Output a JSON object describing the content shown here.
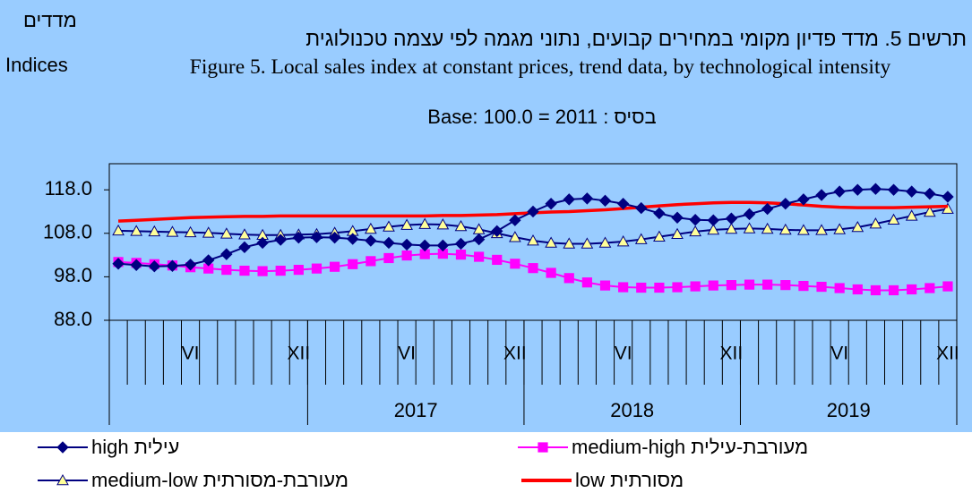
{
  "chart_data": {
    "type": "line",
    "y_label_he": "מדדים",
    "y_label_en": "Indices",
    "title": "תרשים 5. מדד פדיון מקומי במחירים קבועים, נתוני מגמה לפי עצמה טכנולוגית",
    "subtitle": "Figure 5. Local sales index at constant prices, trend data, by  technological intensity",
    "base": "Base: 100.0 = 2011 : בסיס",
    "categories": [
      null,
      null,
      null,
      null,
      "VI",
      null,
      null,
      null,
      null,
      null,
      "XII",
      null,
      null,
      null,
      null,
      null,
      "VI",
      null,
      null,
      null,
      null,
      null,
      "XII",
      null,
      null,
      null,
      null,
      null,
      "VI",
      null,
      null,
      null,
      null,
      null,
      "XII",
      null,
      null,
      null,
      null,
      null,
      "VI",
      null,
      null,
      null,
      null,
      null,
      "XII"
    ],
    "years": [
      "2017",
      "2018",
      "2019"
    ],
    "ylim": [
      88,
      124
    ],
    "yticks": [
      {
        "value": 88,
        "label": "88.0"
      },
      {
        "value": 98,
        "label": "98.0"
      },
      {
        "value": 108,
        "label": "108.0"
      },
      {
        "value": 118,
        "label": "118.0"
      }
    ],
    "series": [
      {
        "name": "מעורבת-מסורתית medium-low",
        "color": "#000080",
        "marker": "triangle",
        "marker_fill": "#ffff99",
        "values": [
          108.6,
          108.5,
          108.4,
          108.3,
          108.2,
          108.1,
          107.9,
          107.7,
          107.6,
          107.6,
          107.7,
          107.8,
          108.1,
          108.5,
          109.0,
          109.5,
          109.9,
          110.1,
          110.0,
          109.6,
          108.9,
          108.0,
          107.1,
          106.3,
          105.8,
          105.6,
          105.6,
          105.8,
          106.1,
          106.6,
          107.2,
          107.8,
          108.4,
          108.8,
          109.0,
          109.1,
          109.0,
          108.8,
          108.7,
          108.7,
          108.9,
          109.4,
          110.2,
          111.1,
          112.0,
          112.9,
          113.6
        ]
      },
      {
        "name": "מעורבת-עילית medium-high",
        "color": "#ff00ff",
        "marker": "square",
        "marker_fill": "#ff00ff",
        "values": [
          101.4,
          101.2,
          100.9,
          100.6,
          100.2,
          99.9,
          99.6,
          99.4,
          99.3,
          99.4,
          99.6,
          99.9,
          100.3,
          100.9,
          101.6,
          102.3,
          102.9,
          103.2,
          103.3,
          103.1,
          102.6,
          101.9,
          101.0,
          100.0,
          98.9,
          97.7,
          96.7,
          96.0,
          95.6,
          95.5,
          95.5,
          95.6,
          95.8,
          96.0,
          96.1,
          96.2,
          96.2,
          96.1,
          95.9,
          95.7,
          95.4,
          95.1,
          94.9,
          94.9,
          95.1,
          95.4,
          95.8
        ]
      },
      {
        "name": "מסורתית low",
        "color": "#ff0000",
        "values": [
          110.8,
          111.0,
          111.2,
          111.4,
          111.6,
          111.7,
          111.8,
          111.9,
          111.9,
          112.0,
          112.0,
          112.0,
          112.0,
          112.0,
          112.0,
          112.0,
          112.0,
          112.0,
          112.1,
          112.1,
          112.2,
          112.3,
          112.5,
          112.7,
          112.9,
          113.0,
          113.2,
          113.4,
          113.7,
          114.0,
          114.3,
          114.6,
          114.8,
          115.0,
          115.1,
          115.1,
          115.0,
          114.8,
          114.5,
          114.2,
          114.0,
          113.9,
          113.9,
          113.9,
          114.0,
          114.1,
          114.2
        ]
      },
      {
        "name": "עילית high",
        "color": "#000080",
        "marker": "diamond",
        "marker_fill": "#000080",
        "values": [
          101.0,
          100.7,
          100.4,
          100.5,
          100.8,
          101.8,
          103.2,
          104.8,
          105.8,
          106.5,
          107.0,
          107.1,
          107.0,
          106.7,
          106.3,
          105.8,
          105.4,
          105.2,
          105.2,
          105.6,
          106.6,
          108.5,
          111.0,
          113.0,
          114.8,
          115.8,
          116.0,
          115.5,
          114.8,
          113.8,
          112.6,
          111.6,
          111.1,
          111.0,
          111.4,
          112.4,
          113.6,
          114.8,
          115.8,
          116.8,
          117.6,
          118.0,
          118.2,
          118.0,
          117.6,
          117.1,
          116.4
        ]
      }
    ]
  }
}
